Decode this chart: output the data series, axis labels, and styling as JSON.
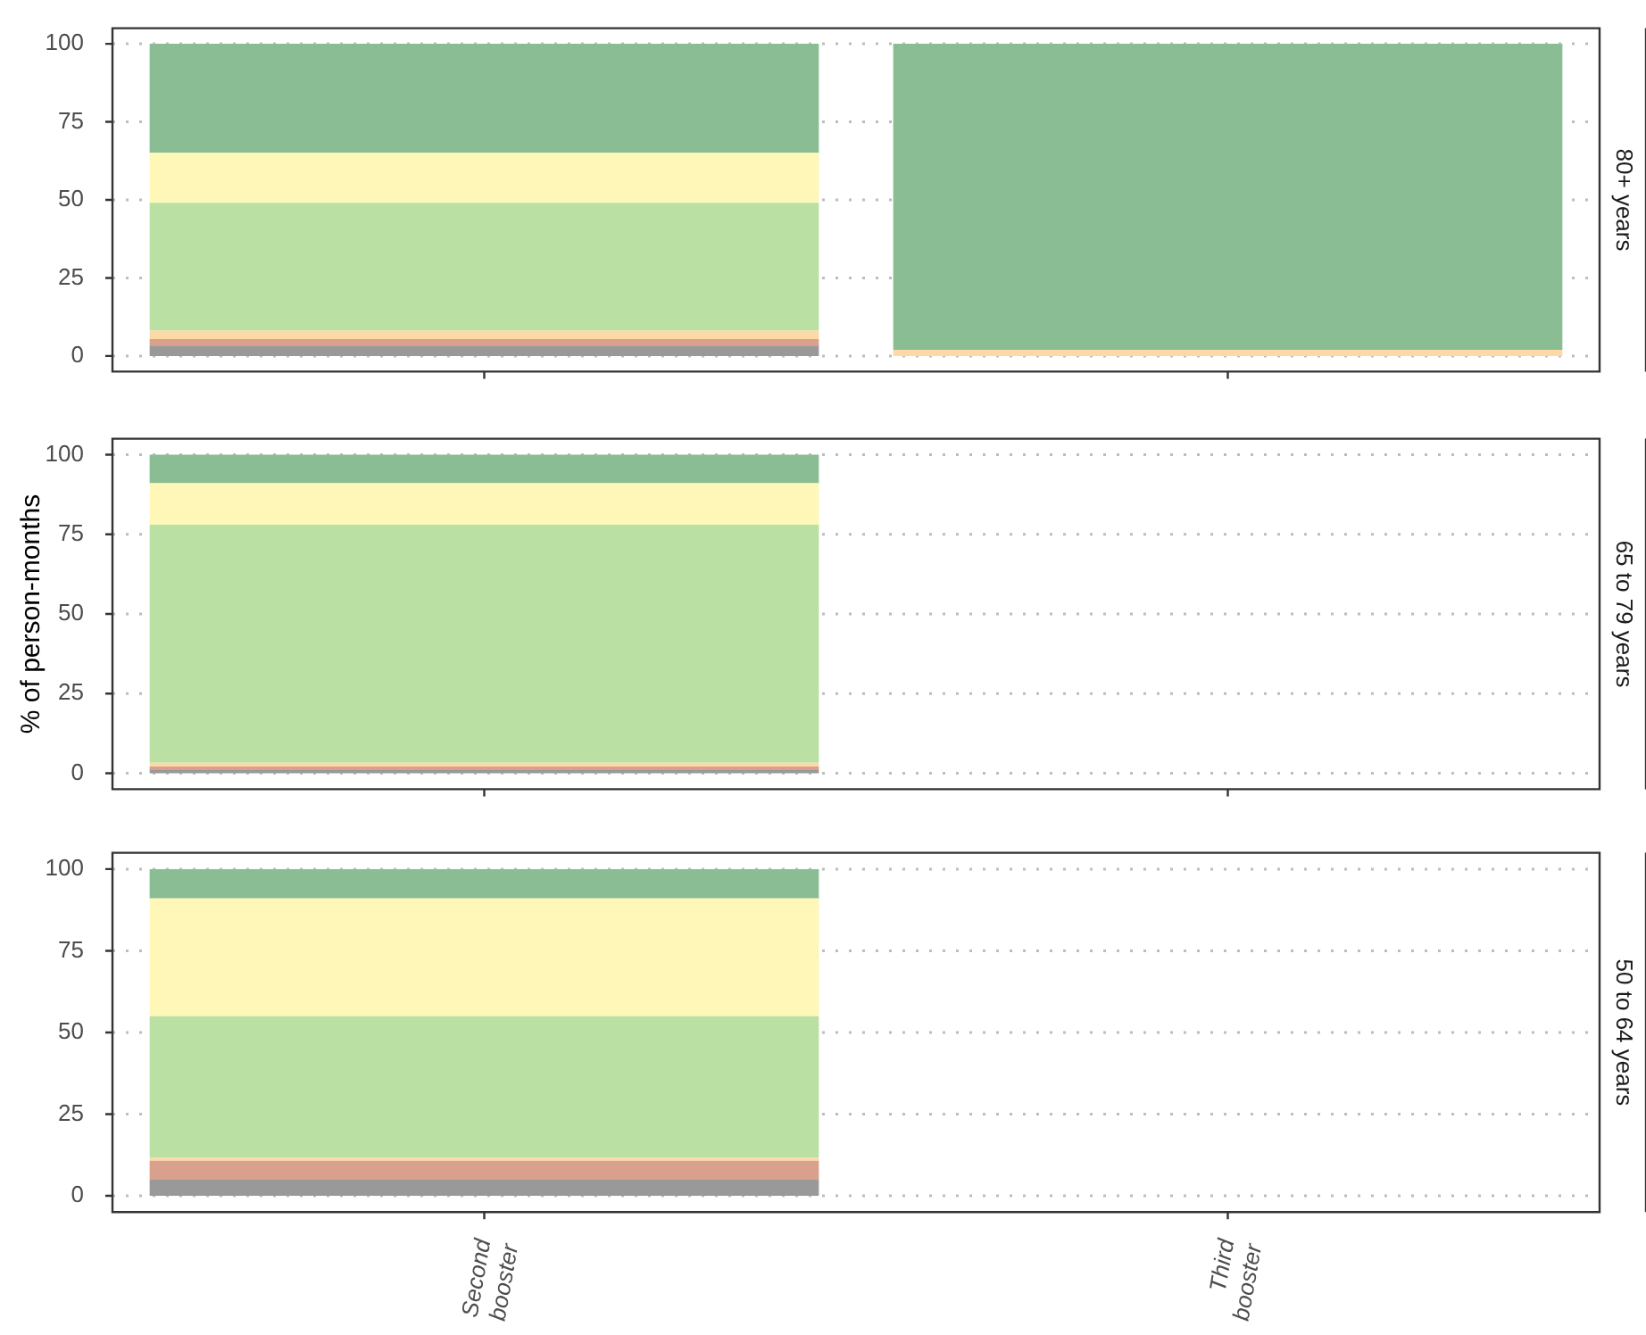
{
  "chart_data": [
    {
      "type": "bar",
      "title": "80+ years",
      "categories": [
        null,
        null
      ],
      "stacked": true,
      "ylim": [
        -5,
        105
      ],
      "yticks": [
        0,
        25,
        50,
        75,
        100
      ],
      "grid": "y",
      "legend": false,
      "tick_labels": "y",
      "series": [
        {
          "color": "#999999",
          "values": [
            3.3,
            null
          ]
        },
        {
          "color": "#d9a08c",
          "values": [
            2.1,
            null
          ]
        },
        {
          "color": "#fdd9a6",
          "values": [
            2.7,
            2
          ]
        },
        {
          "color": "#bbe0a3",
          "values": [
            41,
            null
          ]
        },
        {
          "color": "#fef7b7",
          "values": [
            16,
            null
          ]
        },
        {
          "color": "#8bbd94",
          "values": [
            34.9,
            98
          ]
        }
      ]
    },
    {
      "type": "bar",
      "title": "65 to 79 years",
      "ylabel": "% of person-months",
      "categories": [
        null,
        null
      ],
      "stacked": true,
      "ylim": [
        -5,
        105
      ],
      "yticks": [
        0,
        25,
        50,
        75,
        100
      ],
      "grid": "y",
      "legend": false,
      "tick_labels": "y",
      "series": [
        {
          "color": "#999999",
          "values": [
            1.2,
            null
          ]
        },
        {
          "color": "#d9a08c",
          "values": [
            0.9,
            null
          ]
        },
        {
          "color": "#fdd9a6",
          "values": [
            1.2,
            null
          ]
        },
        {
          "color": "#bbe0a3",
          "values": [
            74.7,
            null
          ]
        },
        {
          "color": "#fef7b7",
          "values": [
            13,
            null
          ]
        },
        {
          "color": "#8bbd94",
          "values": [
            9,
            null
          ]
        }
      ]
    },
    {
      "type": "bar",
      "title": "50 to 64 years",
      "categories": [
        "Second booster",
        "Third booster"
      ],
      "stacked": true,
      "ylim": [
        -5,
        105
      ],
      "yticks": [
        0,
        25,
        50,
        75,
        100
      ],
      "grid": "y",
      "legend": false,
      "series": [
        {
          "color": "#999999",
          "values": [
            4.9,
            null
          ]
        },
        {
          "color": "#d9a08c",
          "values": [
            5.8,
            null
          ]
        },
        {
          "color": "#fdd9a6",
          "values": [
            1,
            null
          ]
        },
        {
          "color": "#bbe0a3",
          "values": [
            43.3,
            null
          ]
        },
        {
          "color": "#fef7b7",
          "values": [
            36,
            null
          ]
        },
        {
          "color": "#8bbd94",
          "values": [
            9,
            null
          ]
        }
      ]
    }
  ]
}
